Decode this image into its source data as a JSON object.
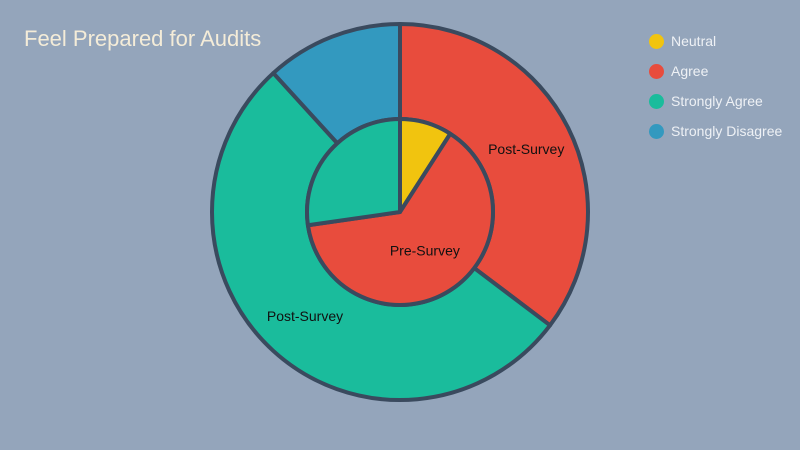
{
  "chart_data": {
    "type": "pie",
    "subtype": "nested-donut",
    "title": "Feel Prepared for Audits",
    "categories": [
      "Neutral",
      "Agree",
      "Strongly Agree",
      "Strongly Disagree"
    ],
    "colors": {
      "Neutral": "#f1c40f",
      "Agree": "#e84c3d",
      "Strongly Agree": "#1abc9c",
      "Strongly Disagree": "#3399bf"
    },
    "stroke_color": "#3a4a5e",
    "legend_position": "top-right",
    "series": [
      {
        "name": "Pre-Survey",
        "ring": "inner",
        "values": [
          1,
          7,
          3,
          0
        ]
      },
      {
        "name": "Post-Survey",
        "ring": "outer",
        "values": [
          0,
          6,
          9,
          2
        ]
      }
    ]
  }
}
